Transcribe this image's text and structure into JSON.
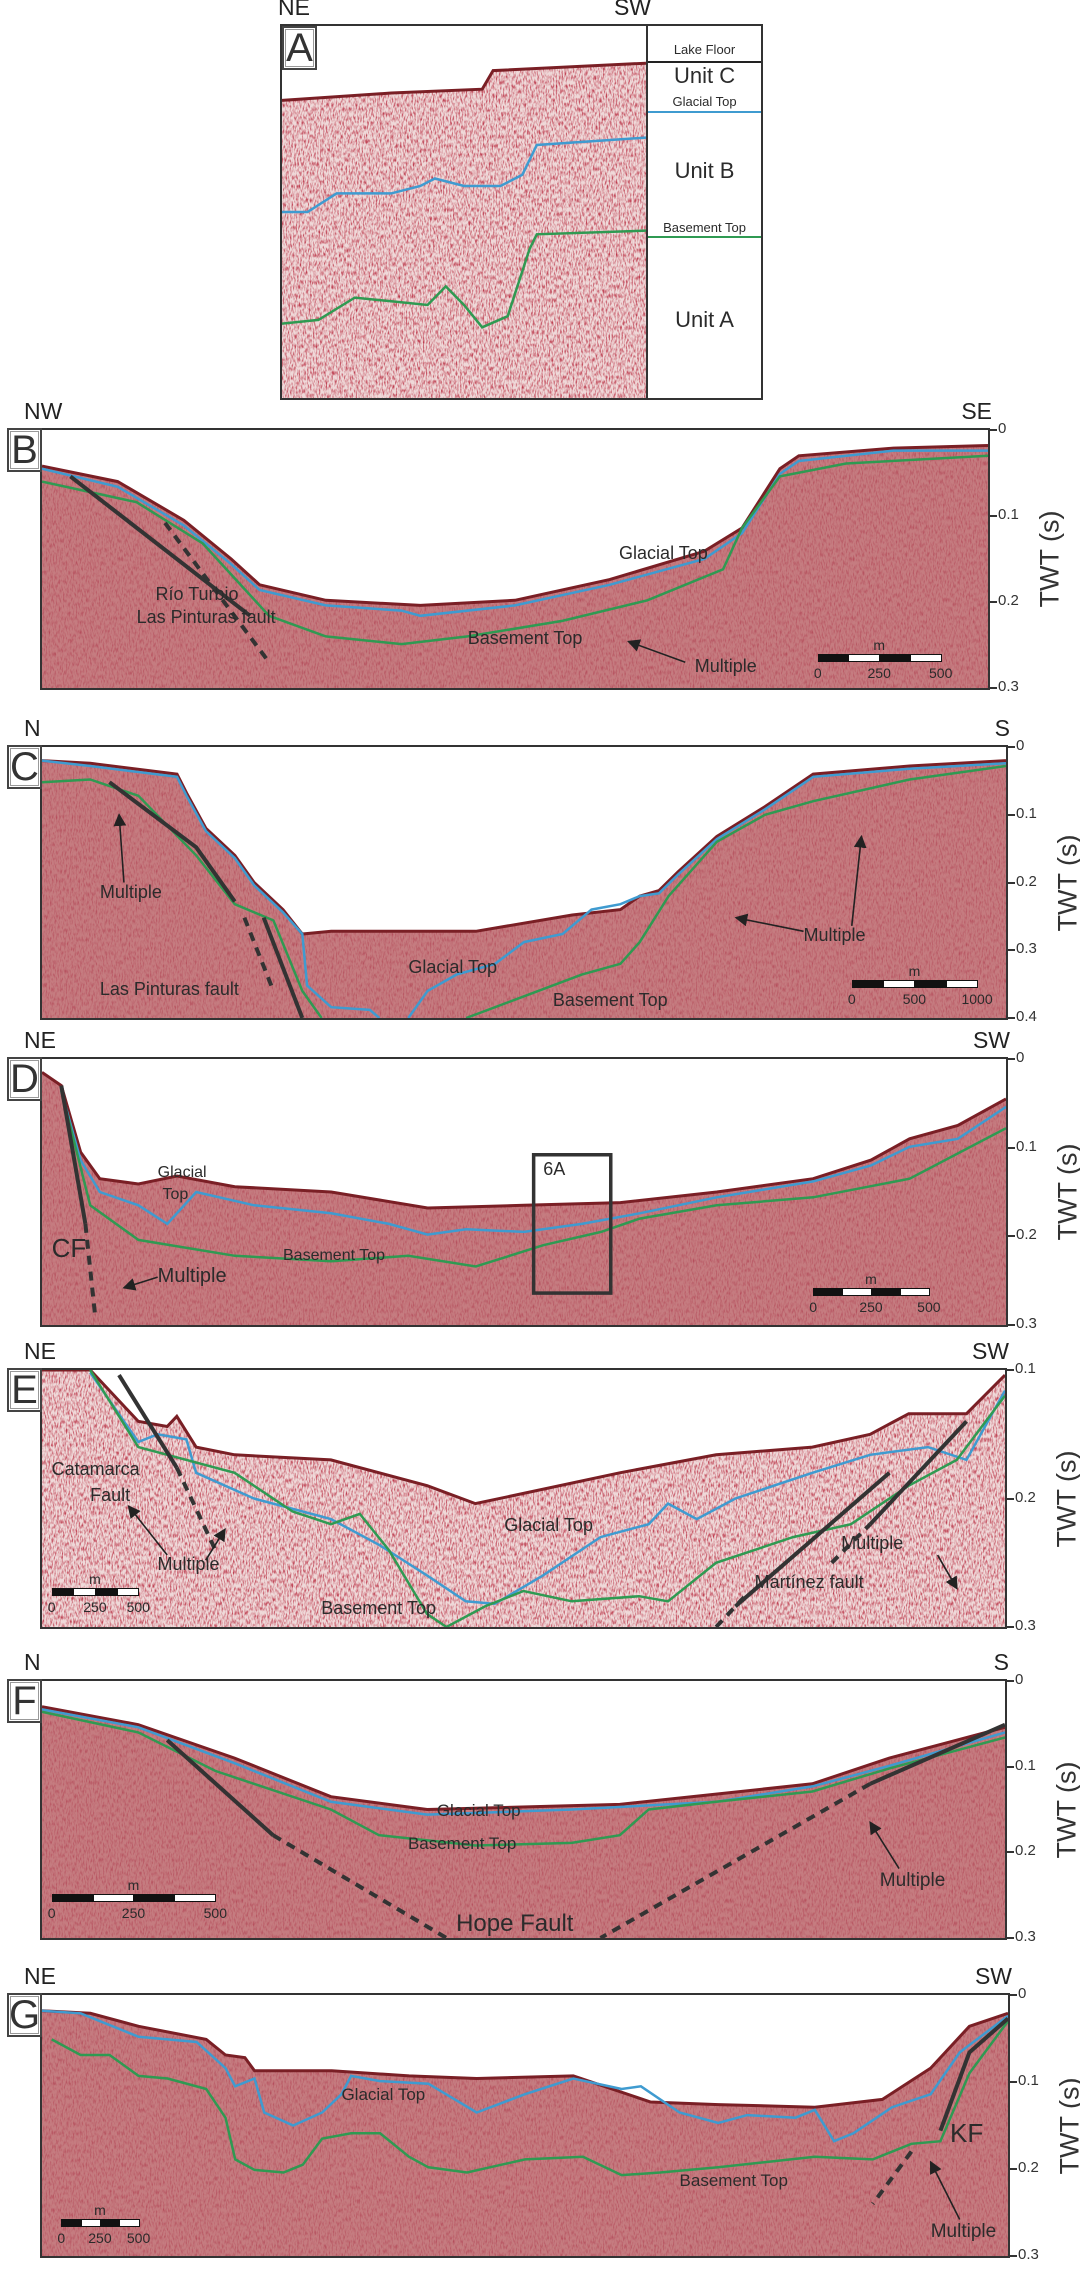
{
  "colors": {
    "glacial_top": "#3f9bd0",
    "basement_top": "#2f9a52",
    "lake_floor": "#222222",
    "fault": "#333333",
    "seismic": "#c57c80"
  },
  "panels": [
    {
      "id": "A",
      "letter": "A",
      "left_dir": "NE",
      "right_dir": "SW",
      "legend": [
        "Lake Floor",
        "Unit C",
        "Glacial Top",
        "Unit B",
        "Basement Top",
        "Unit A"
      ]
    },
    {
      "id": "B",
      "letter": "B",
      "left_dir": "NW",
      "right_dir": "SE",
      "ticks": [
        "0",
        "0.1",
        "0.2",
        "0.3"
      ],
      "axis_label": "TWT (s)",
      "labels": [
        "Río Turbio",
        "Las Pinturas fault",
        "Glacial Top",
        "Basement Top",
        "Multiple"
      ],
      "scale_bar": {
        "unit": "m",
        "labels": [
          "0",
          "250",
          "500"
        ]
      }
    },
    {
      "id": "C",
      "letter": "C",
      "left_dir": "N",
      "right_dir": "S",
      "ticks": [
        "0",
        "0.1",
        "0.2",
        "0.3",
        "0.4"
      ],
      "axis_label": "TWT (s)",
      "labels": [
        "Multiple",
        "Las Pinturas fault",
        "Glacial Top",
        "Basement Top",
        "Multiple"
      ],
      "scale_bar": {
        "unit": "m",
        "labels": [
          "0",
          "500",
          "1000"
        ]
      }
    },
    {
      "id": "D",
      "letter": "D",
      "left_dir": "NE",
      "right_dir": "SW",
      "ticks": [
        "0",
        "0.1",
        "0.2",
        "0.3"
      ],
      "axis_label": "TWT (s)",
      "labels": [
        "Glacial",
        "Top",
        "CF",
        "Multiple",
        "Basement Top",
        "6A"
      ],
      "scale_bar": {
        "unit": "m",
        "labels": [
          "0",
          "250",
          "500"
        ]
      }
    },
    {
      "id": "E",
      "letter": "E",
      "left_dir": "NE",
      "right_dir": "SW",
      "ticks": [
        "0.1",
        "0.2",
        "0.3"
      ],
      "axis_label": "TWT (s)",
      "labels": [
        "Catamarca",
        "Fault",
        "Multiple",
        "Glacial Top",
        "Basement Top",
        "Martínez fault",
        "Multiple"
      ],
      "scale_bar": {
        "unit": "m",
        "labels": [
          "0",
          "250",
          "500"
        ]
      }
    },
    {
      "id": "F",
      "letter": "F",
      "left_dir": "N",
      "right_dir": "S",
      "ticks": [
        "0",
        "0.1",
        "0.2",
        "0.3"
      ],
      "axis_label": "TWT (s)",
      "labels": [
        "Glacial Top",
        "Basement Top",
        "Hope Fault",
        "Multiple"
      ],
      "scale_bar": {
        "unit": "m",
        "labels": [
          "0",
          "250",
          "500"
        ]
      }
    },
    {
      "id": "G",
      "letter": "G",
      "left_dir": "NE",
      "right_dir": "SW",
      "ticks": [
        "0",
        "0.1",
        "0.2",
        "0.3"
      ],
      "axis_label": "TWT (s)",
      "labels": [
        "Glacial Top",
        "Basement Top",
        "KF",
        "Multiple"
      ],
      "scale_bar": {
        "unit": "m",
        "labels": [
          "0",
          "250",
          "500"
        ]
      }
    }
  ]
}
